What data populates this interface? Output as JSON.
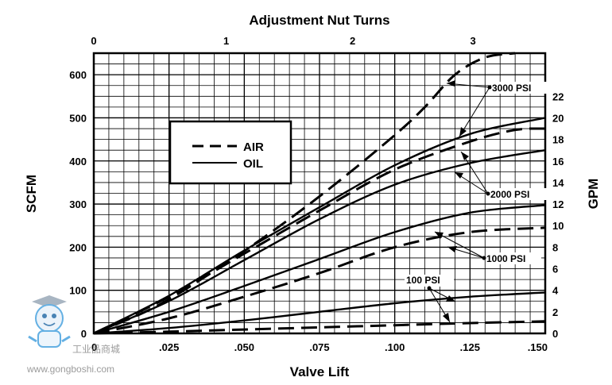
{
  "chart_data": {
    "type": "line",
    "title": "Adjustment Nut Turns",
    "xlabel": "Valve Lift",
    "ylabel": "SCFM",
    "y2label": "GPM",
    "xlim": [
      0,
      0.15
    ],
    "ylim": [
      0,
      650
    ],
    "y2lim": [
      0,
      26
    ],
    "grid": true,
    "x_ticks": [
      {
        "value": 0,
        "label": "0"
      },
      {
        "value": 0.025,
        "label": ".025"
      },
      {
        "value": 0.05,
        "label": ".050"
      },
      {
        "value": 0.075,
        "label": ".075"
      },
      {
        "value": 0.1,
        "label": ".100"
      },
      {
        "value": 0.125,
        "label": ".125"
      },
      {
        "value": 0.15,
        "label": ".150"
      }
    ],
    "y_ticks": [
      {
        "value": 0,
        "label": "0"
      },
      {
        "value": 100,
        "label": "100"
      },
      {
        "value": 200,
        "label": "200"
      },
      {
        "value": 300,
        "label": "300"
      },
      {
        "value": 400,
        "label": "400"
      },
      {
        "value": 500,
        "label": "500"
      },
      {
        "value": 600,
        "label": "600"
      }
    ],
    "y2_ticks": [
      {
        "value": 0,
        "label": "0"
      },
      {
        "value": 2,
        "label": "2"
      },
      {
        "value": 4,
        "label": "4"
      },
      {
        "value": 6,
        "label": "6"
      },
      {
        "value": 8,
        "label": "8"
      },
      {
        "value": 10,
        "label": "10"
      },
      {
        "value": 12,
        "label": "12"
      },
      {
        "value": 14,
        "label": "14"
      },
      {
        "value": 16,
        "label": "16"
      },
      {
        "value": 18,
        "label": "18"
      },
      {
        "value": 20,
        "label": "20"
      },
      {
        "value": 22,
        "label": "22"
      }
    ],
    "top_ticks": [
      {
        "value": 0,
        "label": "0"
      },
      {
        "value": 0.044,
        "label": "1"
      },
      {
        "value": 0.086,
        "label": "2"
      },
      {
        "value": 0.126,
        "label": "3"
      }
    ],
    "legend": {
      "position": "upper-left",
      "entries": [
        {
          "label": "AIR",
          "style": "dashed"
        },
        {
          "label": "OIL",
          "style": "solid"
        }
      ]
    },
    "series": [
      {
        "pressure": "3000 PSI",
        "medium": "air",
        "axis": "y",
        "style": "dashed",
        "x": [
          0,
          0.02,
          0.04,
          0.06,
          0.08,
          0.1,
          0.11,
          0.12,
          0.13,
          0.14
        ],
        "y": [
          0,
          60,
          145,
          240,
          345,
          460,
          525,
          600,
          640,
          650
        ]
      },
      {
        "pressure": "3000 PSI",
        "medium": "oil",
        "axis": "y2",
        "style": "solid",
        "x": [
          0,
          0.025,
          0.05,
          0.075,
          0.1,
          0.125,
          0.15
        ],
        "y": [
          0,
          3.5,
          7.7,
          11.7,
          15.6,
          18.5,
          20
        ]
      },
      {
        "pressure": "2000 PSI",
        "medium": "air",
        "axis": "y",
        "style": "dashed",
        "x": [
          0,
          0.025,
          0.05,
          0.075,
          0.1,
          0.125,
          0.14,
          0.15
        ],
        "y": [
          0,
          85,
          185,
          285,
          380,
          445,
          472,
          475
        ]
      },
      {
        "pressure": "2000 PSI",
        "medium": "oil",
        "axis": "y2",
        "style": "solid",
        "x": [
          0,
          0.025,
          0.05,
          0.075,
          0.1,
          0.125,
          0.15
        ],
        "y": [
          0,
          3,
          6.8,
          10.6,
          13.8,
          15.8,
          17
        ]
      },
      {
        "pressure": "1000 PSI",
        "medium": "air",
        "axis": "y",
        "style": "dashed",
        "x": [
          0,
          0.025,
          0.05,
          0.075,
          0.1,
          0.125,
          0.15
        ],
        "y": [
          0,
          35,
          85,
          140,
          200,
          235,
          245
        ]
      },
      {
        "pressure": "1000 PSI",
        "medium": "oil",
        "axis": "y2",
        "style": "solid",
        "x": [
          0,
          0.025,
          0.05,
          0.075,
          0.1,
          0.125,
          0.15
        ],
        "y": [
          0,
          2,
          4.4,
          6.9,
          9.4,
          11.2,
          11.9
        ]
      },
      {
        "pressure": "100 PSI",
        "medium": "air",
        "axis": "y",
        "style": "dashed",
        "x": [
          0,
          0.025,
          0.05,
          0.075,
          0.1,
          0.125,
          0.15
        ],
        "y": [
          0,
          4,
          9,
          14,
          19,
          24,
          28
        ]
      },
      {
        "pressure": "100 PSI",
        "medium": "oil",
        "axis": "y2",
        "style": "solid",
        "x": [
          0,
          0.025,
          0.05,
          0.075,
          0.1,
          0.125,
          0.15
        ],
        "y": [
          0,
          0.5,
          1.2,
          2,
          2.8,
          3.4,
          3.8
        ]
      }
    ],
    "annotations": [
      {
        "label": "3000 PSI"
      },
      {
        "label": "2000 PSI"
      },
      {
        "label": "1000 PSI"
      },
      {
        "label": "100 PSI"
      }
    ]
  },
  "watermark": {
    "text_cn": "工业品商城",
    "text_url": "www.gongboshi.com"
  }
}
